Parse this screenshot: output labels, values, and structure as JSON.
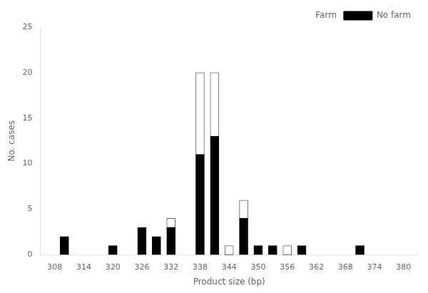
{
  "chart_data": {
    "type": "bar",
    "stacked": true,
    "x": [
      310,
      320,
      326,
      329,
      332,
      338,
      341,
      344,
      347,
      350,
      353,
      356,
      359,
      371
    ],
    "series": [
      {
        "name": "No farm",
        "color": "#000000",
        "values": [
          2,
          1,
          3,
          2,
          3,
          11,
          13,
          0,
          4,
          1,
          1,
          0,
          1,
          1
        ]
      },
      {
        "name": "Farm",
        "color": "#ffffff",
        "values": [
          0,
          0,
          0,
          0,
          1,
          9,
          7,
          1,
          2,
          0,
          0,
          1,
          0,
          0
        ]
      }
    ],
    "xlabel": "Product size (bp)",
    "ylabel": "No. cases",
    "xlim": [
      305,
      383
    ],
    "xticks": [
      308,
      314,
      320,
      326,
      332,
      338,
      344,
      350,
      356,
      362,
      368,
      374,
      380
    ],
    "ylim": [
      0,
      25
    ],
    "yticks": [
      0,
      5,
      10,
      15,
      20,
      25
    ],
    "legend": "upper right",
    "grid": false
  }
}
